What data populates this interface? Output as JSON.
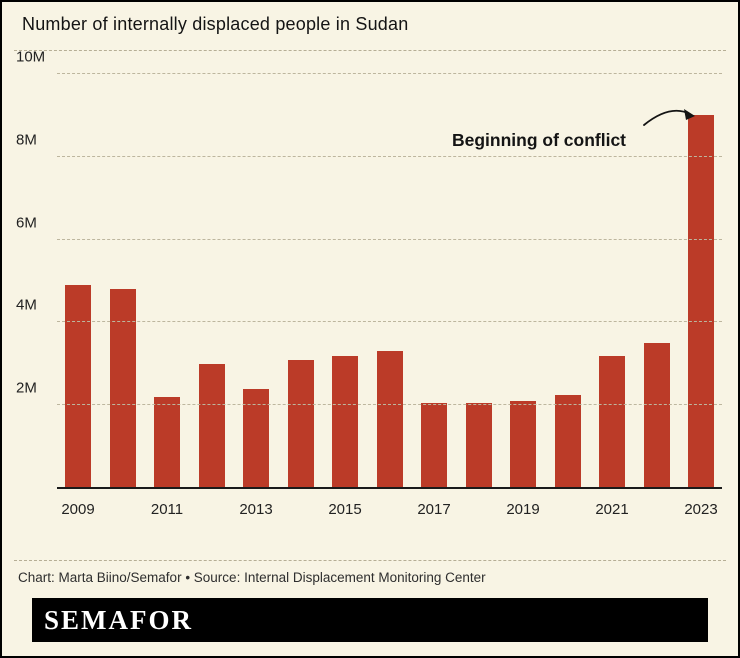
{
  "header": {
    "title": "Number of internally displaced people in Sudan"
  },
  "annotation": {
    "label": "Beginning of conflict"
  },
  "footer": {
    "credit": "Chart: Marta Biino/Semafor • Source: Internal Displacement Monitoring Center",
    "logo_text": "SEMAFOR"
  },
  "colors": {
    "bar": "#bb3b28",
    "background": "#f8f4e4",
    "grid": "#bdb69e",
    "axis": "#1a1a1a",
    "logo_background": "#000000",
    "logo_text": "#ffffff"
  },
  "chart_data": {
    "type": "bar",
    "title": "Number of internally displaced people in Sudan",
    "categories": [
      "2009",
      "2010",
      "2011",
      "2012",
      "2013",
      "2014",
      "2015",
      "2016",
      "2017",
      "2018",
      "2019",
      "2020",
      "2021",
      "2022",
      "2023"
    ],
    "values": [
      4.9,
      4.8,
      2.2,
      3.0,
      2.4,
      3.1,
      3.2,
      3.3,
      2.05,
      2.05,
      2.1,
      2.25,
      3.2,
      3.5,
      9.0
    ],
    "unit": "millions of people",
    "xlabel": "",
    "ylabel": "",
    "ylim": [
      0,
      10
    ],
    "yticks": [
      {
        "label": "2M",
        "value": 2
      },
      {
        "label": "4M",
        "value": 4
      },
      {
        "label": "6M",
        "value": 6
      },
      {
        "label": "8M",
        "value": 8
      },
      {
        "label": "10M",
        "value": 10
      }
    ],
    "xtick_labels_shown": [
      "2009",
      "2011",
      "2013",
      "2015",
      "2017",
      "2019",
      "2021",
      "2023"
    ],
    "x_label_every": 2,
    "grid": "horizontal dashed",
    "legend": "none",
    "annotation": {
      "text": "Beginning of conflict",
      "target_category": "2023"
    }
  }
}
